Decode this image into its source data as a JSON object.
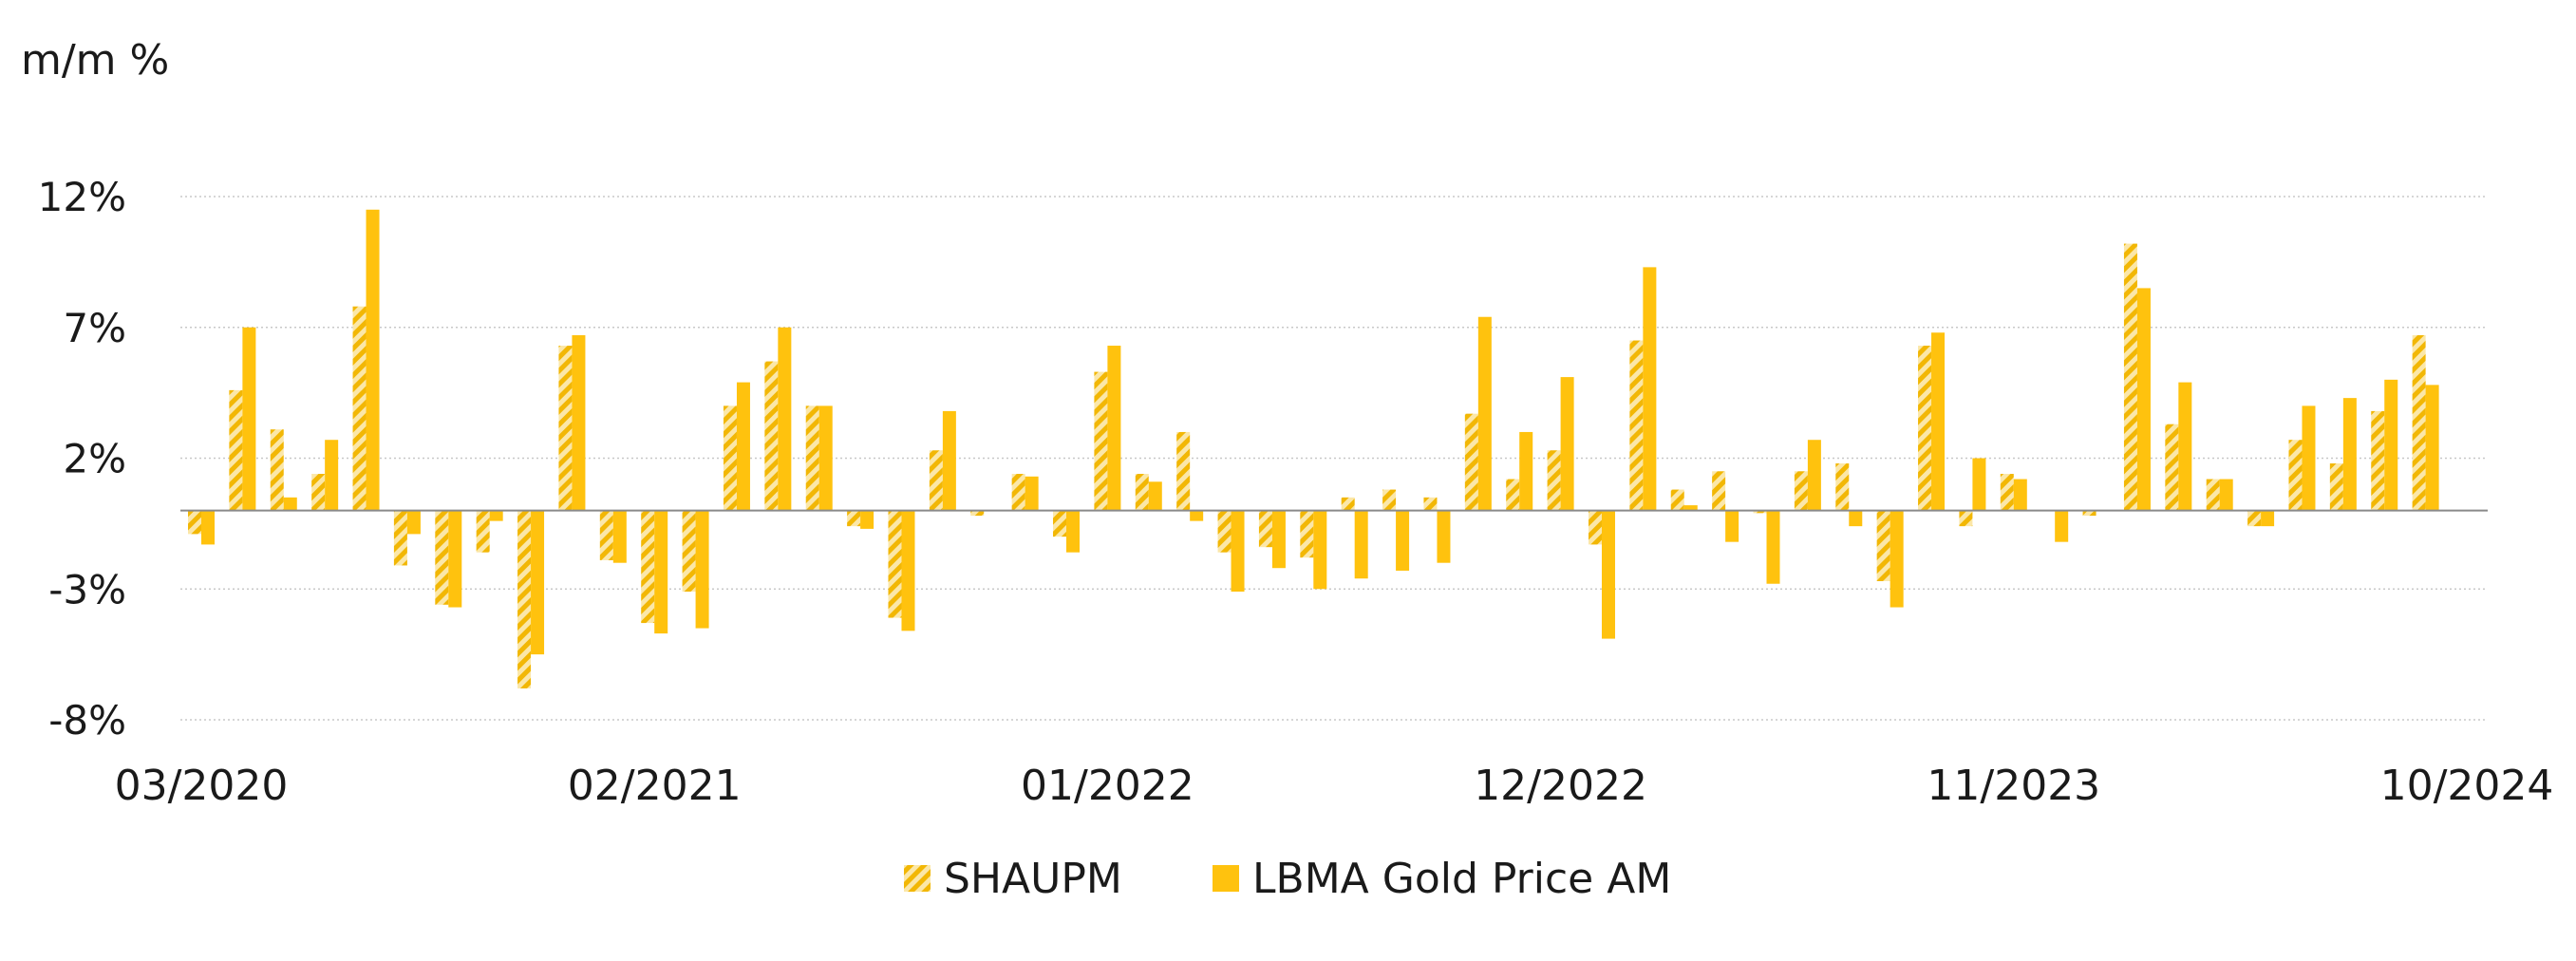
{
  "chart_data": {
    "type": "bar",
    "ylabel": "m/m %",
    "ylim": [
      -8,
      12
    ],
    "yticks": [
      12,
      7,
      2,
      -3,
      -8
    ],
    "ytick_labels": [
      "12%",
      "7%",
      "2%",
      "-3%",
      "-8%"
    ],
    "xtick_labels": [
      "03/2020",
      "02/2021",
      "01/2022",
      "12/2022",
      "11/2023",
      "10/2024"
    ],
    "xtick_indices": [
      0,
      11,
      22,
      33,
      44,
      55
    ],
    "grid": true,
    "legend_position": "bottom-center",
    "categories": [
      "03/2020",
      "04/2020",
      "05/2020",
      "06/2020",
      "07/2020",
      "08/2020",
      "09/2020",
      "10/2020",
      "11/2020",
      "12/2020",
      "01/2021",
      "02/2021",
      "03/2021",
      "04/2021",
      "05/2021",
      "06/2021",
      "07/2021",
      "08/2021",
      "09/2021",
      "10/2021",
      "11/2021",
      "12/2021",
      "01/2022",
      "02/2022",
      "03/2022",
      "04/2022",
      "05/2022",
      "06/2022",
      "07/2022",
      "08/2022",
      "09/2022",
      "10/2022",
      "11/2022",
      "12/2022",
      "01/2023",
      "02/2023",
      "03/2023",
      "04/2023",
      "05/2023",
      "06/2023",
      "07/2023",
      "08/2023",
      "09/2023",
      "10/2023",
      "11/2023",
      "12/2023",
      "01/2024",
      "02/2024",
      "03/2024",
      "04/2024",
      "05/2024",
      "06/2024",
      "07/2024",
      "08/2024",
      "09/2024",
      "10/2024"
    ],
    "series": [
      {
        "name": "SHAUPM",
        "pattern": "hatched",
        "color": "#F5C518",
        "values": [
          -0.9,
          4.6,
          3.1,
          1.4,
          7.8,
          -2.1,
          -3.6,
          -1.6,
          -6.8,
          6.3,
          -1.9,
          -4.3,
          -3.1,
          4.0,
          5.7,
          4.0,
          -0.6,
          -4.1,
          2.3,
          -0.2,
          1.4,
          -1.0,
          5.3,
          1.4,
          3.0,
          -1.6,
          -1.4,
          -1.8,
          0.5,
          0.8,
          0.5,
          3.7,
          1.2,
          2.3,
          -1.3,
          6.5,
          0.8,
          1.5,
          -0.1,
          1.5,
          1.8,
          -2.7,
          6.3,
          -0.6,
          1.4,
          0.0,
          -0.2,
          10.2,
          3.3,
          1.2,
          -0.6,
          2.7,
          1.8,
          3.8,
          6.7,
          0.0
        ]
      },
      {
        "name": "LBMA Gold Price AM",
        "pattern": "solid",
        "color": "#FFC20E",
        "values": [
          -1.3,
          7.0,
          0.5,
          2.7,
          11.5,
          -0.9,
          -3.7,
          -0.4,
          -5.5,
          6.7,
          -2.0,
          -4.7,
          -4.5,
          4.9,
          7.0,
          4.0,
          -0.7,
          -4.6,
          3.8,
          0.0,
          1.3,
          -1.6,
          6.3,
          1.1,
          -0.4,
          -3.1,
          -2.2,
          -3.0,
          -2.6,
          -2.3,
          -2.0,
          7.4,
          3.0,
          5.1,
          -4.9,
          9.3,
          0.2,
          -1.2,
          -2.8,
          2.7,
          -0.6,
          -3.7,
          6.8,
          2.0,
          1.2,
          -1.2,
          0.0,
          8.5,
          4.9,
          1.2,
          -0.6,
          4.0,
          4.3,
          5.0,
          4.8,
          0.0
        ]
      }
    ]
  },
  "colors": {
    "accent": "#FFC20E",
    "hatch_light": "#FBE7A8",
    "grid": "#C8C8C8",
    "zero_line": "#8A8A8A",
    "text": "#1a1a1a"
  }
}
